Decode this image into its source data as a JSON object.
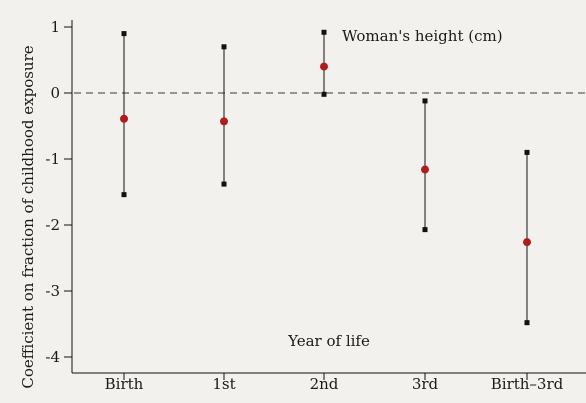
{
  "chart_data": {
    "type": "error-bar",
    "categories": [
      "Birth",
      "1st",
      "2nd",
      "3rd",
      "Birth–3rd"
    ],
    "series": [
      {
        "name": "Woman's height (cm)",
        "estimate": [
          -0.39,
          -0.43,
          0.4,
          -1.16,
          -2.26
        ],
        "lower": [
          -1.54,
          -1.38,
          -0.02,
          -2.07,
          -3.48
        ],
        "upper": [
          0.9,
          0.7,
          0.92,
          -0.12,
          -0.9
        ]
      }
    ],
    "ylim": [
      -4,
      1
    ],
    "yticks": [
      1,
      0,
      -1,
      -2,
      -3,
      -4
    ],
    "ylabel": "Coefficient on fraction of childhood exposure",
    "xlabel": "Year of life",
    "annotation": "Woman's height (cm)",
    "reference_line": 0,
    "colors": {
      "estimate": "#b01c1c",
      "bounds": "#111111",
      "reference": "#777777",
      "background": "#f2f1ee"
    }
  }
}
